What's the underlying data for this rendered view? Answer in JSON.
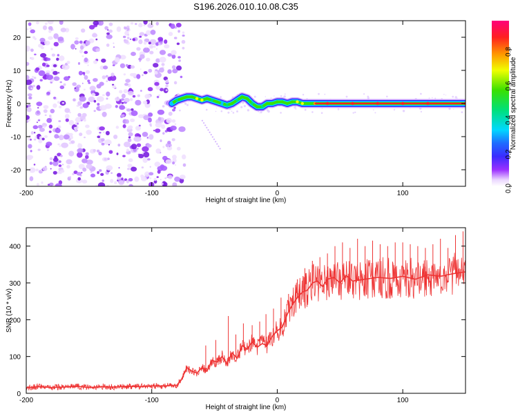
{
  "figure_title": "S196.2026.010.10.08.C35",
  "chart_data": [
    {
      "type": "heatmap",
      "title": "S196.2026.010.10.08.C35",
      "xlabel": "Height of straight line (km)",
      "ylabel": "Frequency (Hz)",
      "xlim": [
        -200,
        150
      ],
      "ylim": [
        -25,
        25
      ],
      "xticks": [
        -200,
        -100,
        0,
        100
      ],
      "yticks": [
        -20,
        -10,
        0,
        10,
        20
      ],
      "grid": false,
      "noise_region_x": [
        -200,
        -80
      ],
      "ridge": {
        "description": "dominant frequency track",
        "x": [
          -84,
          -80,
          -76,
          -72,
          -68,
          -64,
          -60,
          -56,
          -52,
          -48,
          -44,
          -40,
          -36,
          -32,
          -28,
          -24,
          -20,
          -16,
          -12,
          -8,
          -4,
          0,
          4,
          8,
          12,
          16,
          20,
          30,
          40,
          60,
          80,
          100,
          120,
          150
        ],
        "y": [
          0,
          1,
          1.5,
          2,
          2,
          1.5,
          1,
          1.5,
          1,
          0.5,
          0,
          -0.5,
          0,
          1,
          2,
          1.5,
          0,
          -1,
          -1,
          0,
          0,
          0.5,
          0.5,
          0,
          0.5,
          0.5,
          0,
          0,
          0,
          0,
          0,
          0,
          0,
          0
        ],
        "amplitude": [
          0.3,
          0.5,
          0.6,
          0.6,
          0.7,
          0.8,
          0.8,
          0.7,
          0.5,
          0.6,
          0.4,
          0.5,
          0.6,
          0.5,
          0.7,
          0.6,
          0.5,
          0.6,
          0.5,
          0.6,
          0.7,
          0.7,
          0.7,
          0.6,
          0.7,
          0.8,
          0.8,
          0.9,
          0.95,
          0.95,
          0.95,
          0.95,
          0.95,
          0.95
        ]
      },
      "streak": {
        "x": [
          -60,
          -45
        ],
        "y": [
          -5,
          -14
        ]
      },
      "colorbar": {
        "label": "Normalized spectral amplitude",
        "range": [
          0,
          0.97
        ],
        "ticks": [
          "0.0",
          "0.2",
          "0.4",
          "0.6",
          "0.8"
        ],
        "tick_values": [
          0.0,
          0.2,
          0.4,
          0.6,
          0.8
        ]
      }
    },
    {
      "type": "line",
      "xlabel": "Height of straight line (km)",
      "ylabel": "SNR (10 * v/v)",
      "xlim": [
        -200,
        150
      ],
      "ylim": [
        0,
        450
      ],
      "xticks": [
        -200,
        -100,
        0,
        100
      ],
      "yticks": [
        0,
        100,
        200,
        300,
        400
      ],
      "grid": false,
      "series": [
        {
          "name": "SNR",
          "color": "#ee3333",
          "x": [
            -200,
            -190,
            -180,
            -170,
            -160,
            -150,
            -140,
            -130,
            -120,
            -110,
            -100,
            -90,
            -80,
            -76,
            -72,
            -68,
            -64,
            -60,
            -56,
            -52,
            -48,
            -44,
            -40,
            -36,
            -32,
            -28,
            -24,
            -20,
            -16,
            -12,
            -8,
            -4,
            0,
            4,
            8,
            12,
            16,
            20,
            24,
            28,
            32,
            36,
            40,
            45,
            50,
            55,
            60,
            70,
            80,
            90,
            100,
            110,
            120,
            130,
            140,
            150
          ],
          "y": [
            15,
            18,
            16,
            17,
            19,
            16,
            18,
            17,
            19,
            18,
            20,
            20,
            22,
            40,
            70,
            60,
            55,
            70,
            60,
            90,
            85,
            100,
            80,
            110,
            95,
            130,
            120,
            140,
            125,
            135,
            130,
            155,
            170,
            180,
            215,
            240,
            260,
            275,
            280,
            300,
            305,
            290,
            310,
            315,
            300,
            320,
            305,
            310,
            315,
            312,
            318,
            310,
            322,
            318,
            325,
            330
          ]
        }
      ],
      "peaks": {
        "x": [
          -57,
          -49,
          -39,
          -33,
          -27,
          -20,
          -14,
          -9,
          -3,
          3,
          9,
          16,
          22,
          28,
          34,
          40,
          46,
          52,
          58,
          64,
          70,
          76,
          82,
          88,
          94,
          100,
          106,
          112,
          118,
          124,
          130,
          136,
          142,
          148
        ],
        "y": [
          130,
          145,
          210,
          160,
          190,
          185,
          195,
          215,
          230,
          260,
          270,
          310,
          340,
          360,
          370,
          380,
          400,
          410,
          395,
          420,
          400,
          415,
          405,
          400,
          410,
          410,
          405,
          400,
          395,
          405,
          420,
          395,
          430,
          440
        ]
      }
    }
  ]
}
